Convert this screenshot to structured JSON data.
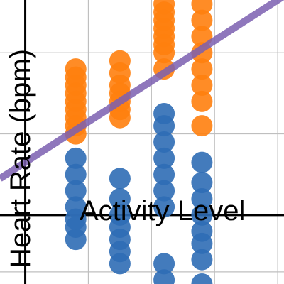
{
  "chart_data": {
    "type": "scatter",
    "title": "",
    "xlabel": "Activity Level",
    "ylabel": "Heart Rate (bpm)",
    "xlim": [
      -0.4,
      4.1
    ],
    "ylim": [
      -0.85,
      2.65
    ],
    "x_ticks": [
      0,
      1,
      2,
      3,
      4
    ],
    "y_ticks": [
      -0.7,
      0,
      1,
      2
    ],
    "grid": true,
    "legend": "none",
    "colors": {
      "series_orange": "#ff7f0e",
      "series_blue": "#2f6db5",
      "trend_line": "#7b5fb0",
      "axis": "#000000",
      "grid": "#bfbfbf"
    },
    "series": [
      {
        "color_key": "series_orange",
        "points": [
          [
            0.8,
            1.8
          ],
          [
            0.8,
            1.7
          ],
          [
            0.8,
            1.6
          ],
          [
            0.8,
            1.5
          ],
          [
            0.8,
            1.4
          ],
          [
            0.8,
            1.3
          ],
          [
            0.8,
            1.2
          ],
          [
            0.8,
            1.1
          ],
          [
            0.8,
            1.0
          ],
          [
            1.5,
            1.9
          ],
          [
            1.5,
            1.75
          ],
          [
            1.5,
            1.6
          ],
          [
            1.5,
            1.5
          ],
          [
            1.5,
            1.4
          ],
          [
            1.5,
            1.3
          ],
          [
            1.5,
            1.2
          ],
          [
            2.2,
            2.6
          ],
          [
            2.2,
            2.5
          ],
          [
            2.2,
            2.4
          ],
          [
            2.2,
            2.3
          ],
          [
            2.2,
            2.2
          ],
          [
            2.2,
            2.1
          ],
          [
            2.2,
            2.0
          ],
          [
            2.2,
            1.8
          ],
          [
            2.8,
            2.6
          ],
          [
            2.8,
            2.4
          ],
          [
            2.8,
            2.2
          ],
          [
            2.8,
            2.0
          ],
          [
            2.8,
            1.8
          ],
          [
            2.8,
            1.6
          ],
          [
            2.8,
            1.4
          ],
          [
            2.8,
            1.1
          ]
        ]
      },
      {
        "color_key": "series_blue",
        "points": [
          [
            0.8,
            0.7
          ],
          [
            0.8,
            0.5
          ],
          [
            0.8,
            0.3
          ],
          [
            0.8,
            0.1
          ],
          [
            0.8,
            -0.05
          ],
          [
            0.8,
            -0.15
          ],
          [
            0.8,
            -0.3
          ],
          [
            1.5,
            0.45
          ],
          [
            1.5,
            0.2
          ],
          [
            1.5,
            0.0
          ],
          [
            1.5,
            -0.15
          ],
          [
            1.5,
            -0.3
          ],
          [
            1.5,
            -0.45
          ],
          [
            1.5,
            -0.6
          ],
          [
            2.2,
            1.25
          ],
          [
            2.2,
            1.1
          ],
          [
            2.2,
            0.9
          ],
          [
            2.2,
            0.7
          ],
          [
            2.2,
            0.5
          ],
          [
            2.2,
            0.3
          ],
          [
            2.2,
            0.1
          ],
          [
            2.2,
            -0.6
          ],
          [
            2.2,
            -0.8
          ],
          [
            2.8,
            0.65
          ],
          [
            2.8,
            0.4
          ],
          [
            2.8,
            0.2
          ],
          [
            2.8,
            0.0
          ],
          [
            2.8,
            -0.2
          ],
          [
            2.8,
            -0.35
          ],
          [
            2.8,
            -0.55
          ],
          [
            2.8,
            -0.85
          ]
        ]
      }
    ],
    "trend_line": {
      "slope": 0.5,
      "intercept": 0.65
    }
  }
}
